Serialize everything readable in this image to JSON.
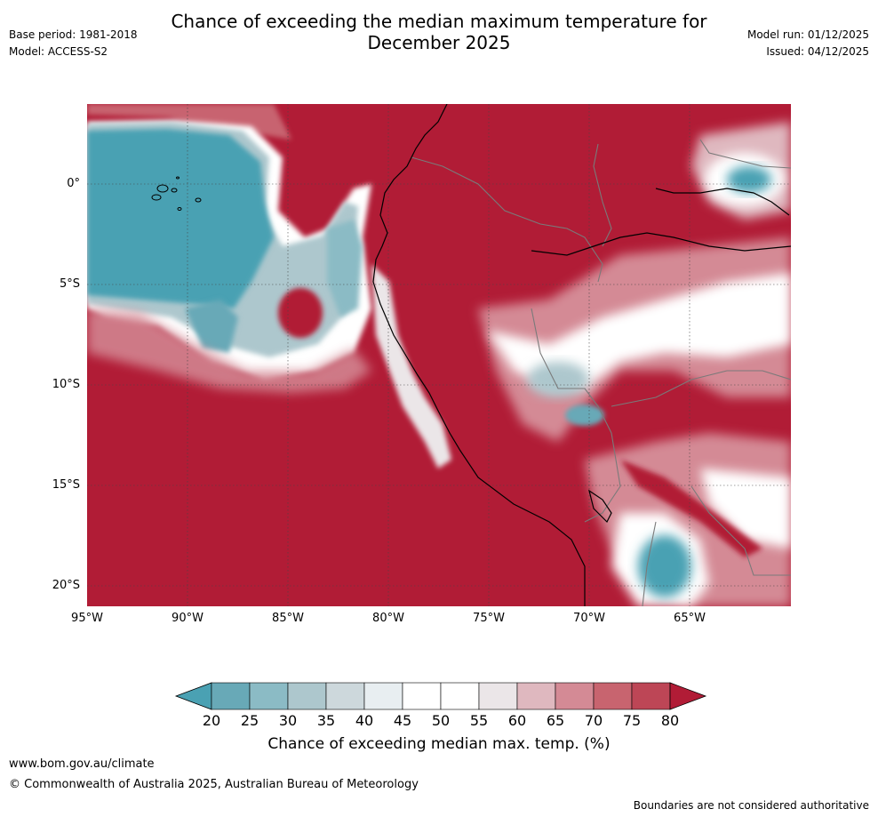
{
  "header": {
    "title_line1": "Chance of exceeding the median maximum temperature for",
    "title_line2": "December 2025",
    "base_period": "Base period: 1981-2018",
    "model": "Model: ACCESS-S2",
    "model_run": "Model run: 01/12/2025",
    "issued": "Issued: 04/12/2025"
  },
  "map": {
    "lat_labels": [
      "0°",
      "5°S",
      "10°S",
      "15°S",
      "20°S"
    ],
    "lon_labels": [
      "95°W",
      "90°W",
      "85°W",
      "80°W",
      "75°W",
      "70°W",
      "65°W"
    ],
    "colors": {
      "ocean_warm": "#b11c36",
      "teal": "#4aa1b3",
      "pink": "#d48a95",
      "light": "#f0f0f0"
    }
  },
  "colorbar": {
    "ticks": [
      "20",
      "25",
      "30",
      "35",
      "40",
      "45",
      "50",
      "55",
      "60",
      "65",
      "70",
      "75",
      "80"
    ],
    "colors": [
      "#4aa1b3",
      "#68a9b7",
      "#8bbbc5",
      "#adc7cd",
      "#cdd8dc",
      "#e8eef1",
      "#ffffff",
      "#ffffff",
      "#ebe6e8",
      "#dfb8bf",
      "#d48a95",
      "#c8646f",
      "#bd4656",
      "#b11c36"
    ],
    "label": "Chance of exceeding median max. temp. (%)"
  },
  "footer": {
    "website": "www.bom.gov.au/climate",
    "copyright": "© Commonwealth of Australia 2025, Australian Bureau of Meteorology",
    "disclaimer": "Boundaries are not considered authoritative"
  }
}
